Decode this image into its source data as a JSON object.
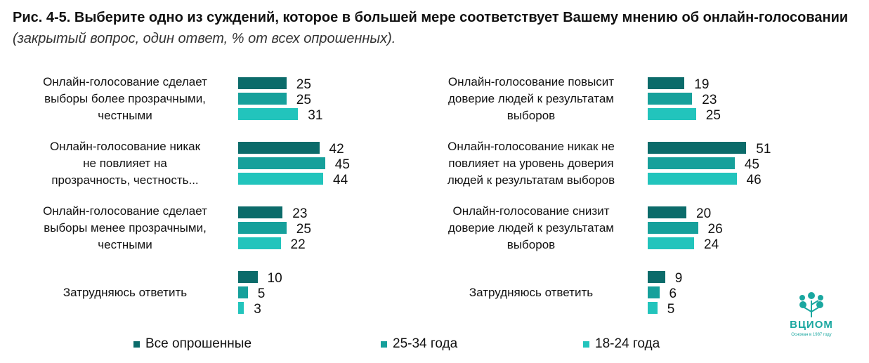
{
  "title": {
    "bold": "Рис. 4-5. Выберите одно из суждений, которое в большей мере соответствует Вашему мнению об онлайн-голосовании",
    "italic": "(закрытый вопрос, один ответ, % от всех опрошенных)."
  },
  "colors": {
    "all": "#0b6b6a",
    "age_25_34": "#16a09b",
    "age_18_24": "#22c4bc"
  },
  "chart_data": [
    {
      "type": "bar",
      "orientation": "horizontal",
      "categories": [
        "Онлайн-голосование сделает выборы более прозрачными, честными",
        "Онлайн-голосование никак не повлияет на прозрачность, честность...",
        "Онлайн-голосование сделает выборы менее прозрачными, честными",
        "Затрудняюсь ответить"
      ],
      "series": [
        {
          "name": "Все опрошенные",
          "values": [
            25,
            42,
            23,
            10
          ]
        },
        {
          "name": "25-34 года",
          "values": [
            25,
            45,
            25,
            5
          ]
        },
        {
          "name": "18-24 года",
          "values": [
            31,
            44,
            22,
            3
          ]
        }
      ]
    },
    {
      "type": "bar",
      "orientation": "horizontal",
      "categories": [
        "Онлайн-голосование повысит доверие людей к результатам выборов",
        "Онлайн-голосование никак не повлияет на уровень доверия людей к результатам выборов",
        "Онлайн-голосование снизит доверие людей к результатам выборов",
        "Затрудняюсь ответить"
      ],
      "series": [
        {
          "name": "Все опрошенные",
          "values": [
            19,
            51,
            20,
            9
          ]
        },
        {
          "name": "25-34 года",
          "values": [
            23,
            45,
            26,
            6
          ]
        },
        {
          "name": "18-24 года",
          "values": [
            25,
            46,
            24,
            5
          ]
        }
      ]
    }
  ],
  "legend": {
    "items": [
      "Все опрошенные",
      "25-34 года",
      "18-24 года"
    ],
    "placement": "bottom"
  },
  "logo": {
    "text": "ВЦИОМ",
    "sub": "Основан в 1987 году"
  }
}
